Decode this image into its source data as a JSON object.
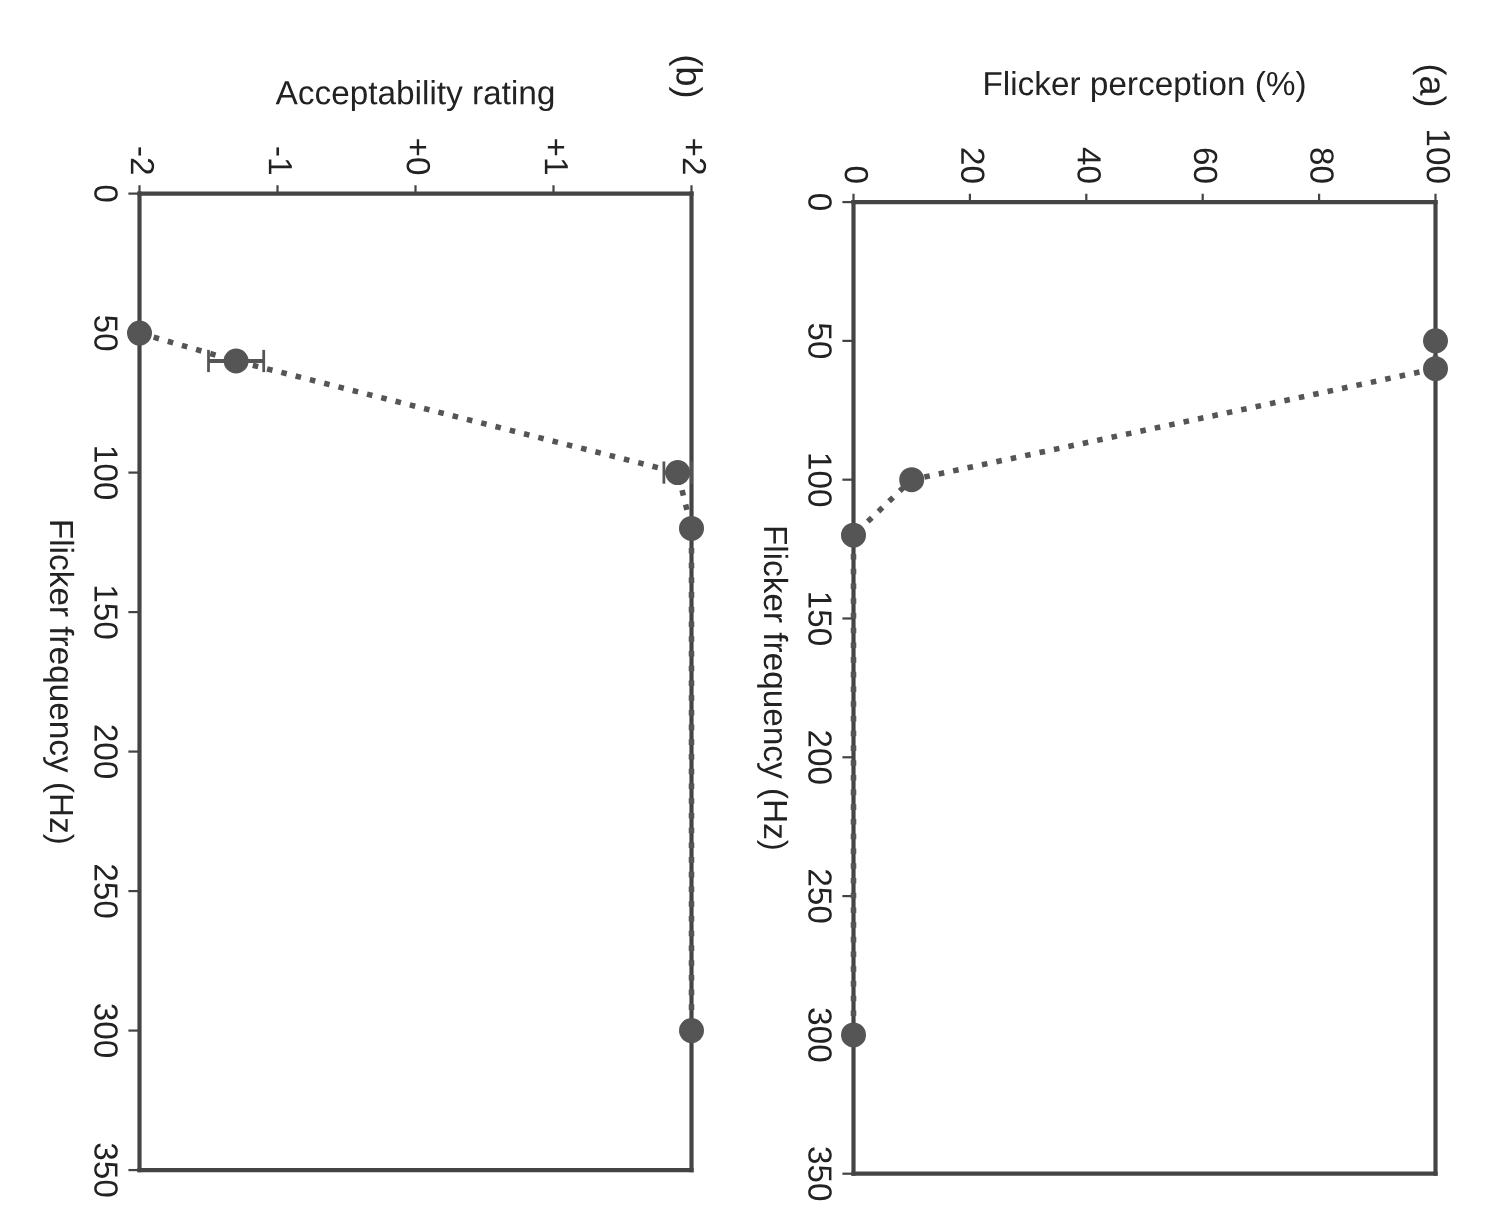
{
  "chart_data": [
    {
      "type": "line",
      "title": "(b)",
      "xlabel": "Acceptability rating",
      "ylabel": "Flicker frequency (Hz)",
      "series": [
        {
          "color": "#555555",
          "x": [
            -2,
            -1.3,
            1.9,
            2,
            2
          ],
          "values": [
            50,
            60,
            100,
            120,
            300
          ],
          "xerrors": [
            null,
            0.2,
            0.1,
            null,
            null
          ]
        }
      ],
      "ylim": [
        350,
        0
      ],
      "yticks": [
        0,
        50,
        100,
        150,
        200,
        250,
        300,
        350
      ],
      "xlim": [
        -2,
        2
      ],
      "xticks": [
        {
          "value": -2,
          "label": "-2"
        },
        {
          "value": -1,
          "label": "-1"
        },
        {
          "value": 0,
          "label": "+0"
        },
        {
          "value": 1,
          "label": "+1"
        },
        {
          "value": 2,
          "label": "+2"
        }
      ],
      "marker": "circle",
      "line_style": "dotted",
      "grid": false,
      "legend": false
    },
    {
      "type": "line",
      "title": "(a)",
      "xlabel": "Flicker perception (%)",
      "ylabel": "Flicker frequency (Hz)",
      "series": [
        {
          "color": "#555555",
          "x": [
            100,
            100,
            10,
            0,
            0
          ],
          "values": [
            50,
            60,
            100,
            120,
            300
          ]
        }
      ],
      "ylim": [
        350,
        0
      ],
      "yticks": [
        0,
        50,
        100,
        150,
        200,
        250,
        300,
        350
      ],
      "xlim": [
        0,
        100
      ],
      "xticks": [
        0,
        20,
        40,
        60,
        80,
        100
      ],
      "marker": "circle",
      "line_style": "dotted",
      "grid": false,
      "legend": false
    }
  ]
}
